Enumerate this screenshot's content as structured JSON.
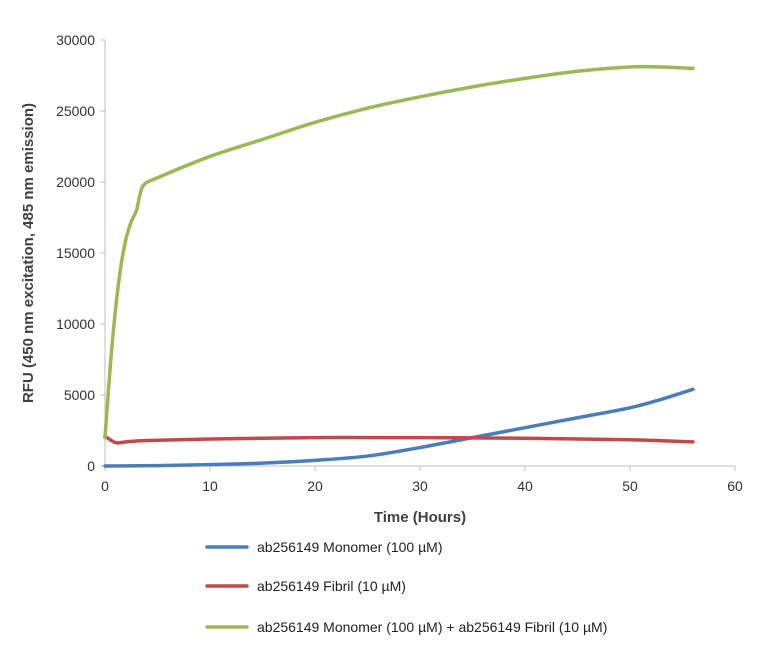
{
  "chart_data": {
    "type": "line",
    "title": "",
    "xlabel": "Time (Hours)",
    "ylabel": "RFU (450 nm excitation, 485 nm emission)",
    "xlim": [
      0,
      60
    ],
    "ylim": [
      0,
      30000
    ],
    "x_ticks": [
      0,
      10,
      20,
      30,
      40,
      50,
      60
    ],
    "y_ticks": [
      0,
      5000,
      10000,
      15000,
      20000,
      25000,
      30000
    ],
    "grid": false,
    "legend_position": "bottom",
    "series": [
      {
        "name": "ab256149 Monomer (100 µM)",
        "color": "#4a7ebb",
        "x": [
          0,
          5,
          10,
          15,
          20,
          25,
          30,
          35,
          40,
          45,
          50,
          53,
          56
        ],
        "y": [
          0,
          30,
          100,
          200,
          400,
          700,
          1300,
          2000,
          2700,
          3400,
          4100,
          4700,
          5400
        ]
      },
      {
        "name": "ab256149 Fibril (10 µM)",
        "color": "#be4b48",
        "x": [
          0,
          1,
          2,
          4,
          10,
          20,
          25,
          30,
          40,
          50,
          56
        ],
        "y": [
          2100,
          1650,
          1700,
          1800,
          1900,
          2000,
          2000,
          2000,
          1950,
          1850,
          1700
        ]
      },
      {
        "name": "ab256149 Monomer (100 µM) + ab256149 Fibril (10 µM)",
        "color": "#98b954",
        "x": [
          0,
          0.5,
          1,
          1.5,
          2,
          2.5,
          3,
          3.3,
          3.7,
          5,
          10,
          15,
          20,
          25,
          30,
          35,
          40,
          45,
          50,
          53,
          56
        ],
        "y": [
          2000,
          7000,
          11000,
          14000,
          16000,
          17200,
          18000,
          19000,
          19800,
          20300,
          21800,
          23000,
          24200,
          25200,
          26000,
          26700,
          27300,
          27800,
          28100,
          28100,
          28000
        ]
      }
    ]
  }
}
